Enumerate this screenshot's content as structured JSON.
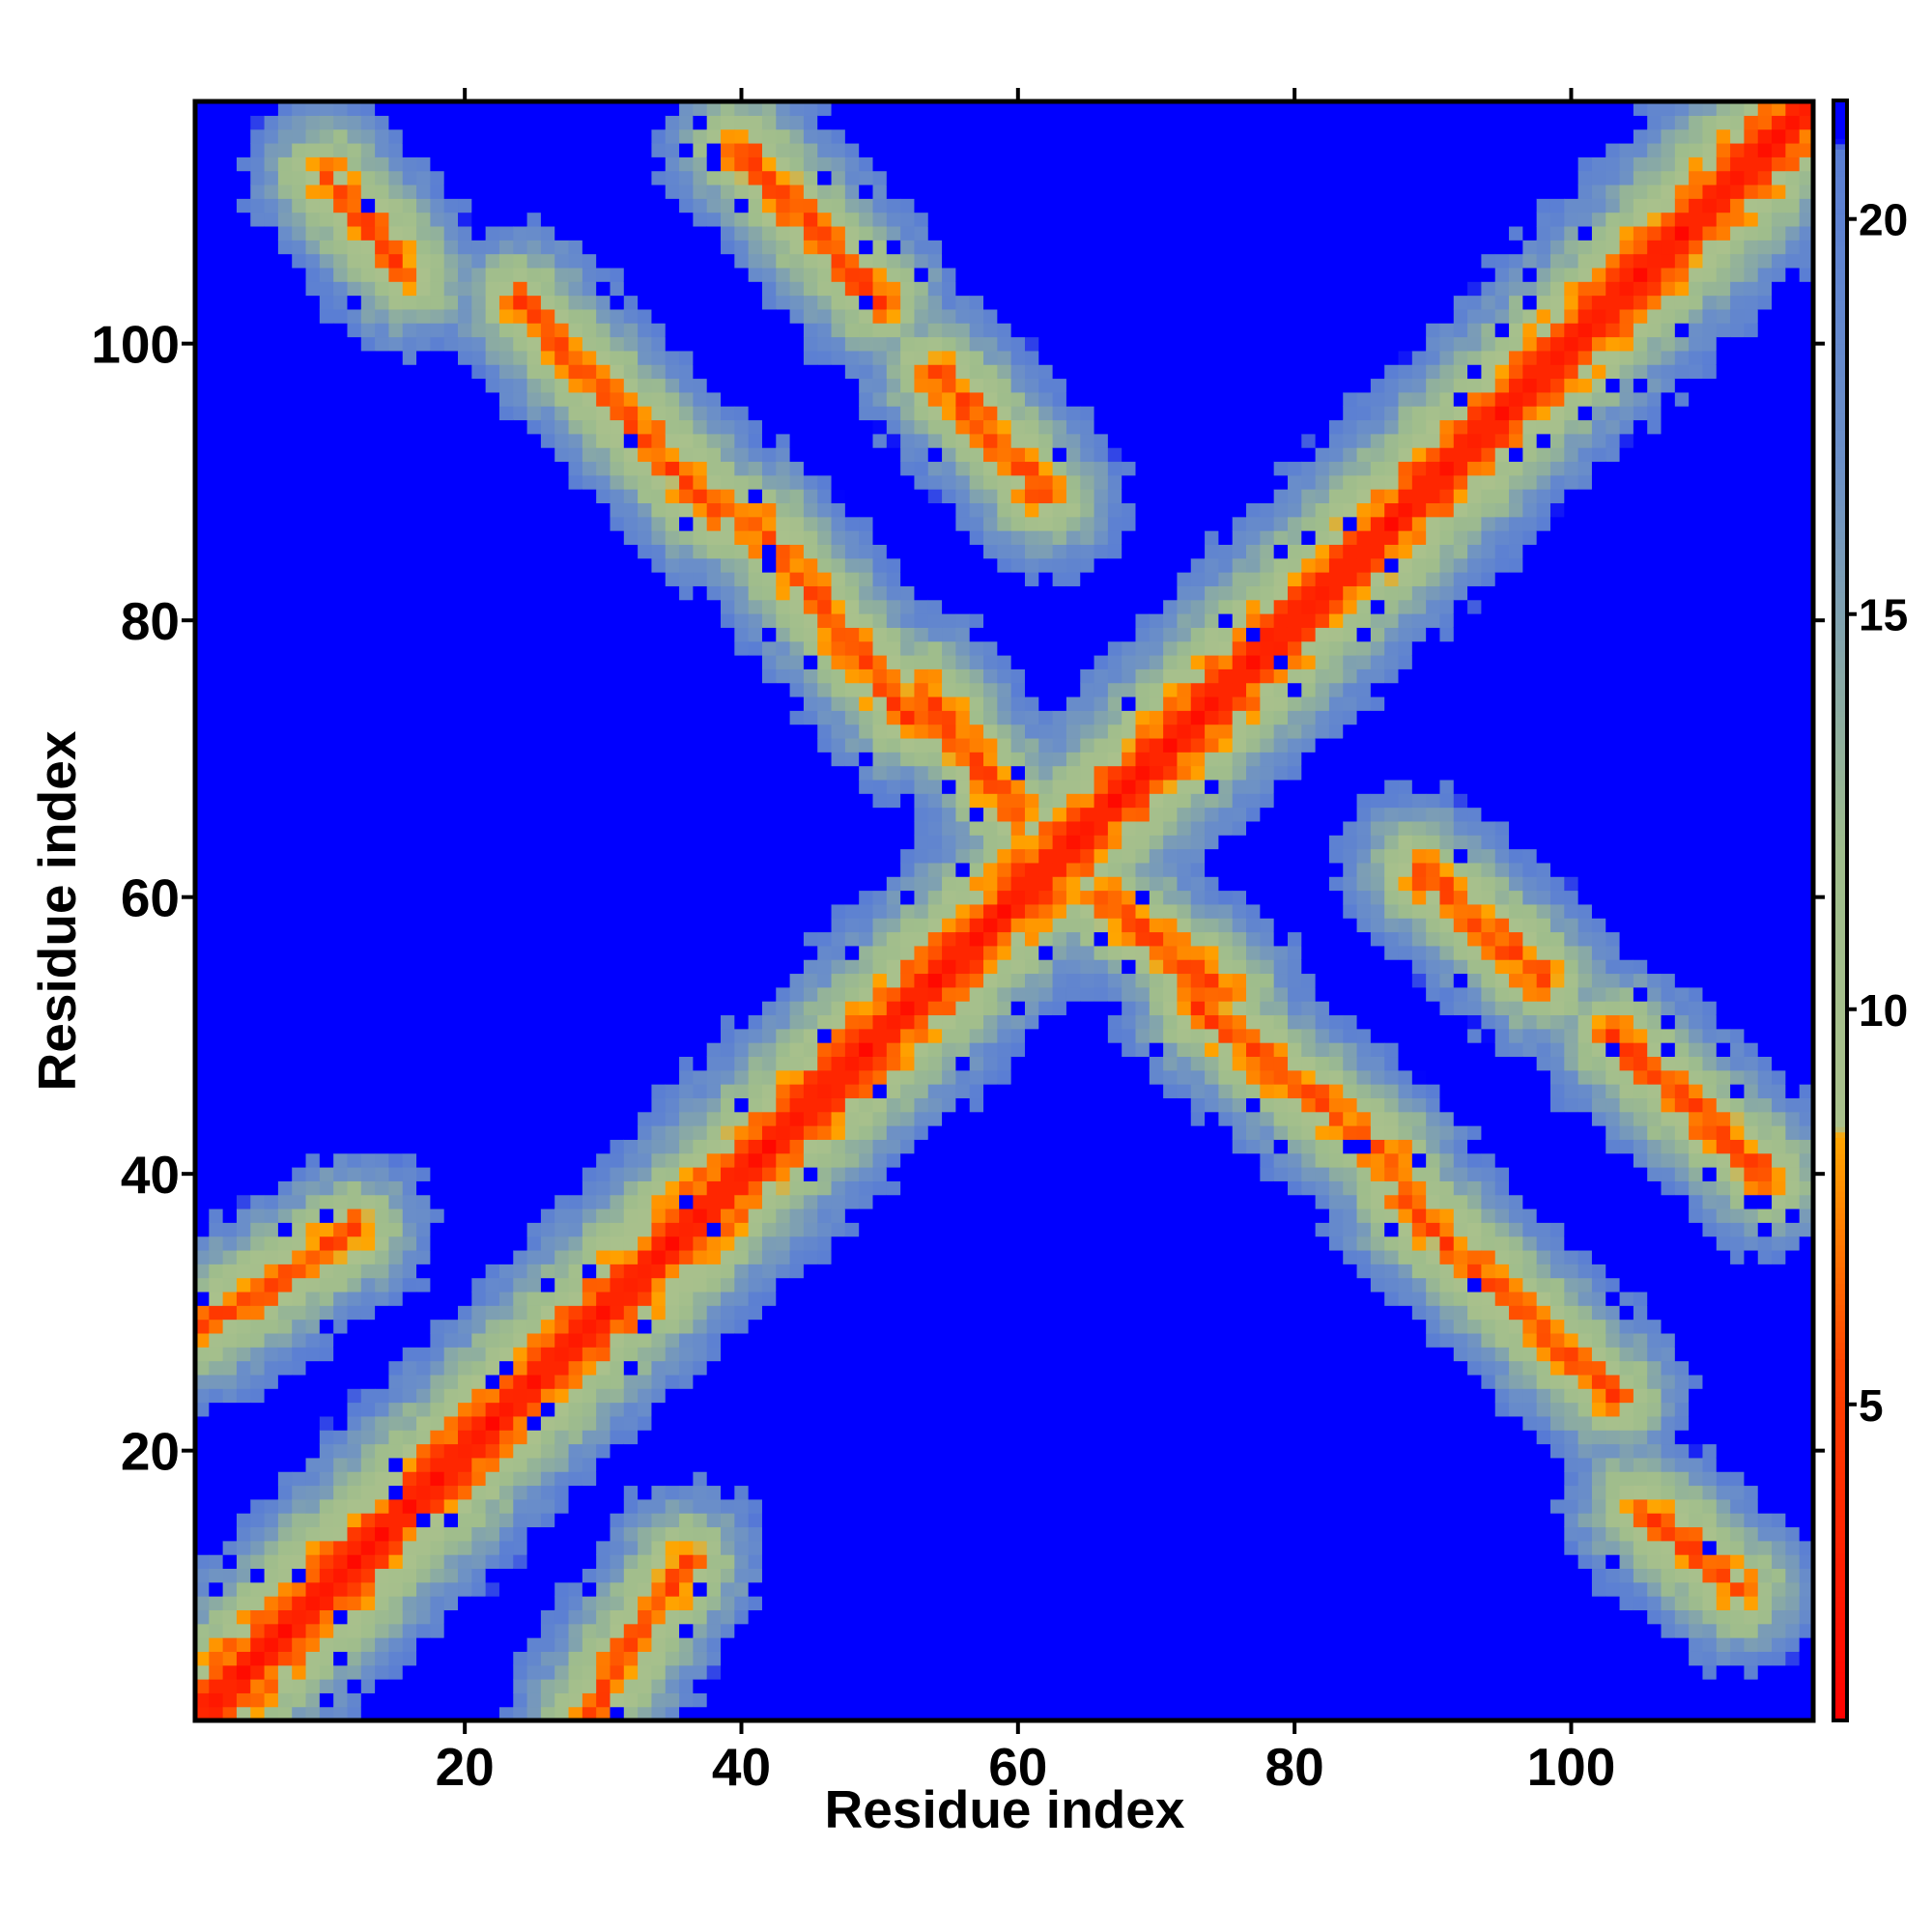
{
  "chart_data": {
    "type": "heatmap",
    "title": "",
    "xlabel": "Residue index",
    "ylabel": "Residue index",
    "n_residues": 117,
    "xlim": [
      0.5,
      117.5
    ],
    "ylim": [
      0.5,
      117.5
    ],
    "x_ticks": [
      20,
      40,
      60,
      80,
      100
    ],
    "y_ticks": [
      20,
      40,
      60,
      80,
      100
    ],
    "colorbar": {
      "ticks": [
        5,
        10,
        15,
        20
      ],
      "range": [
        1,
        21.5
      ],
      "stops": [
        {
          "value": 1,
          "color": "#ff0000"
        },
        {
          "value": 5.5,
          "color": "#ff4400"
        },
        {
          "value": 8.4,
          "color": "#ffa500"
        },
        {
          "value": 8.5,
          "color": "#aac18c"
        },
        {
          "value": 12,
          "color": "#9fbd8c"
        },
        {
          "value": 17,
          "color": "#6b8fc8"
        },
        {
          "value": 20.9,
          "color": "#5a7ed4"
        },
        {
          "value": 21,
          "color": "#0000ff"
        },
        {
          "value": 21.5,
          "color": "#0000ff"
        }
      ]
    },
    "grid": false,
    "legend": "colorbar-right",
    "structure": {
      "diagonal": "distance below 4 along i = j",
      "contact_bands": [
        {
          "i": [
            1,
            12
          ],
          "j": [
            29,
            36
          ],
          "kind": "parallel"
        },
        {
          "i": [
            10,
            16
          ],
          "j": [
            105,
            112
          ],
          "kind": "antiparallel"
        },
        {
          "i": [
            24,
            38
          ],
          "j": [
            88,
            103
          ],
          "kind": "antiparallel"
        },
        {
          "i": [
            40,
            50
          ],
          "j": [
            103,
            114
          ],
          "kind": "antiparallel"
        },
        {
          "i": [
            41,
            52
          ],
          "j": [
            73,
            87
          ],
          "kind": "antiparallel"
        },
        {
          "i": [
            53,
            60
          ],
          "j": [
            66,
            75
          ],
          "kind": "antiparallel"
        },
        {
          "i": [
            54,
            62
          ],
          "j": [
            89,
            98
          ],
          "kind": "antiparallel"
        },
        {
          "i": [
            28,
            36
          ],
          "j": [
            2,
            10
          ],
          "kind": "parallel"
        },
        {
          "i": [
            69,
            75
          ],
          "j": [
            55,
            62
          ],
          "kind": "antiparallel"
        },
        {
          "i": [
            78,
            90
          ],
          "j": [
            42,
            53
          ],
          "kind": "antiparallel"
        },
        {
          "i": [
            89,
            101
          ],
          "j": [
            24,
            38
          ],
          "kind": "antiparallel"
        },
        {
          "i": [
            97,
            106
          ],
          "j": [
            47,
            57
          ],
          "kind": "antiparallel"
        },
        {
          "i": [
            105,
            112
          ],
          "j": [
            10,
            16
          ],
          "kind": "antiparallel"
        },
        {
          "i": [
            88,
            96
          ],
          "j": [
            57,
            66
          ],
          "kind": "antiparallel"
        }
      ]
    }
  }
}
